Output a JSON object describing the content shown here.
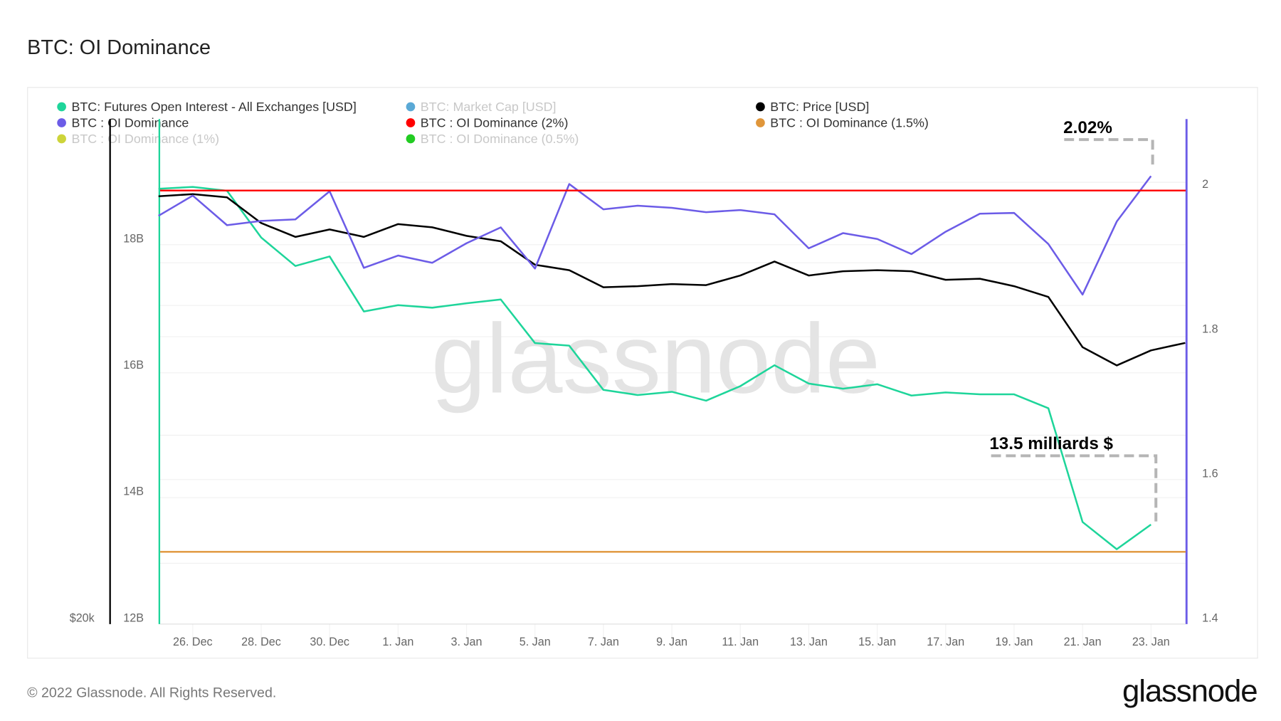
{
  "page": {
    "title": "BTC: OI Dominance",
    "footer": "© 2022 Glassnode. All Rights Reserved.",
    "logo": "glassnode",
    "watermark": "glassnode"
  },
  "chart_data": {
    "type": "line",
    "title": "BTC: OI Dominance",
    "x": [
      "2021-12-25",
      "2021-12-26",
      "2021-12-27",
      "2021-12-28",
      "2021-12-29",
      "2021-12-30",
      "2021-12-31",
      "2022-01-01",
      "2022-01-02",
      "2022-01-03",
      "2022-01-04",
      "2022-01-05",
      "2022-01-06",
      "2022-01-07",
      "2022-01-08",
      "2022-01-09",
      "2022-01-10",
      "2022-01-11",
      "2022-01-12",
      "2022-01-13",
      "2022-01-14",
      "2022-01-15",
      "2022-01-16",
      "2022-01-17",
      "2022-01-18",
      "2022-01-19",
      "2022-01-20",
      "2022-01-21",
      "2022-01-22",
      "2022-01-23",
      "2022-01-24"
    ],
    "x_tick_labels": [
      "26. Dec",
      "28. Dec",
      "30. Dec",
      "1. Jan",
      "3. Jan",
      "5. Jan",
      "7. Jan",
      "9. Jan",
      "11. Jan",
      "13. Jan",
      "15. Jan",
      "17. Jan",
      "19. Jan",
      "21. Jan",
      "23. Jan"
    ],
    "legend": [
      {
        "label": "BTC: Futures Open Interest - All Exchanges [USD]",
        "color": "#1ed59a",
        "active": true
      },
      {
        "label": "BTC: Market Cap [USD]",
        "color": "#5aa9d6",
        "active": false
      },
      {
        "label": "BTC: Price [USD]",
        "color": "#000000",
        "active": true
      },
      {
        "label": "BTC : OI Dominance",
        "color": "#6c5ce7",
        "active": true
      },
      {
        "label": "BTC : OI Dominance (2%)",
        "color": "#ff0000",
        "active": true
      },
      {
        "label": "BTC : OI Dominance (1.5%)",
        "color": "#e0963a",
        "active": true
      },
      {
        "label": "BTC : OI Dominance (1%)",
        "color": "#cdd43a",
        "active": false
      },
      {
        "label": "BTC : OI Dominance (0.5%)",
        "color": "#22cc22",
        "active": false
      }
    ],
    "axes": {
      "left_oi": {
        "ticks": [
          "12B",
          "14B",
          "16B",
          "18B"
        ],
        "range": [
          12,
          19.8
        ],
        "unit": "B USD"
      },
      "left_price": {
        "ticks": [
          "$20k"
        ]
      },
      "right_dominance": {
        "ticks": [
          "1.4",
          "1.6",
          "1.8",
          "2"
        ],
        "range": [
          1.4,
          2.1
        ],
        "unit": "%"
      }
    },
    "grid": true,
    "legend_placement": "top-left",
    "series": [
      {
        "name": "BTC: Futures Open Interest - All Exchanges [USD]",
        "axis": "left_oi",
        "color": "#1ed59a",
        "values": [
          18.78,
          18.81,
          18.75,
          18.01,
          17.56,
          17.71,
          16.84,
          16.94,
          16.9,
          16.97,
          17.03,
          16.34,
          16.3,
          15.6,
          15.52,
          15.57,
          15.43,
          15.66,
          15.99,
          15.7,
          15.62,
          15.69,
          15.51,
          15.56,
          15.53,
          15.53,
          15.31,
          13.51,
          13.08,
          13.47,
          null
        ]
      },
      {
        "name": "BTC: Price [USD]",
        "axis": "left_price",
        "color": "#000000",
        "values": [
          50.8,
          51.0,
          50.7,
          48.3,
          47.0,
          47.7,
          47.0,
          48.2,
          47.9,
          47.1,
          46.6,
          44.4,
          43.9,
          42.3,
          42.4,
          42.6,
          42.5,
          43.4,
          44.7,
          43.4,
          43.8,
          43.9,
          43.8,
          43.0,
          43.1,
          42.4,
          41.4,
          36.7,
          35.0,
          36.4,
          37.1
        ]
      },
      {
        "name": "BTC : OI Dominance",
        "axis": "right_dominance",
        "color": "#6c5ce7",
        "values": [
          1.965,
          1.993,
          1.952,
          1.958,
          1.96,
          1.999,
          1.893,
          1.91,
          1.9,
          1.927,
          1.949,
          1.892,
          2.009,
          1.974,
          1.979,
          1.976,
          1.97,
          1.973,
          1.967,
          1.92,
          1.941,
          1.933,
          1.912,
          1.943,
          1.968,
          1.969,
          1.926,
          1.856,
          1.957,
          2.02,
          null
        ]
      },
      {
        "name": "BTC : OI Dominance (2%)",
        "axis": "right_dominance",
        "color": "#ff0000",
        "constant": 2.0
      },
      {
        "name": "BTC : OI Dominance (1.5%)",
        "axis": "right_dominance",
        "color": "#e0963a",
        "constant": 1.5
      }
    ],
    "annotations": [
      {
        "text": "2.02%",
        "date": "2022-01-23",
        "series": "BTC : OI Dominance"
      },
      {
        "text": "13.5 milliards $",
        "date": "2022-01-23",
        "series": "BTC: Futures Open Interest - All Exchanges [USD]"
      }
    ]
  }
}
